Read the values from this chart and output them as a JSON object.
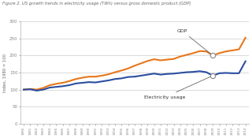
{
  "title": "Figure 2. US growth trends in electricity usage (TWh) versus gross domestic product (GDP)",
  "ylabel": "Index, 1980 = 100",
  "years": [
    1980,
    1981,
    1982,
    1983,
    1984,
    1985,
    1986,
    1987,
    1988,
    1989,
    1990,
    1991,
    1992,
    1993,
    1994,
    1995,
    1996,
    1997,
    1998,
    1999,
    2000,
    2001,
    2002,
    2003,
    2004,
    2005,
    2006,
    2007,
    2008,
    2009,
    2010,
    2011,
    2012,
    2013,
    2014
  ],
  "gdp": [
    100,
    102,
    100,
    105,
    113,
    117,
    120,
    125,
    131,
    135,
    138,
    138,
    141,
    145,
    151,
    156,
    162,
    170,
    177,
    184,
    189,
    186,
    188,
    190,
    197,
    202,
    207,
    213,
    212,
    200,
    207,
    212,
    215,
    218,
    252
  ],
  "electricity": [
    100,
    101,
    97,
    100,
    106,
    108,
    110,
    113,
    118,
    120,
    122,
    121,
    124,
    127,
    131,
    133,
    137,
    138,
    141,
    144,
    147,
    144,
    146,
    147,
    149,
    151,
    152,
    154,
    151,
    141,
    148,
    149,
    148,
    148,
    183
  ],
  "gdp_color": "#E8761A",
  "elec_color": "#2B4EA0",
  "background_color": "#FFFFFF",
  "ylim": [
    0,
    300
  ],
  "yticks": [
    0,
    50,
    100,
    150,
    200,
    250,
    300
  ],
  "gdp_label": "GDP",
  "elec_label": "Electricity usage",
  "circle_year": 2009,
  "circle_gdp_val": 200,
  "circle_elec_val": 141
}
